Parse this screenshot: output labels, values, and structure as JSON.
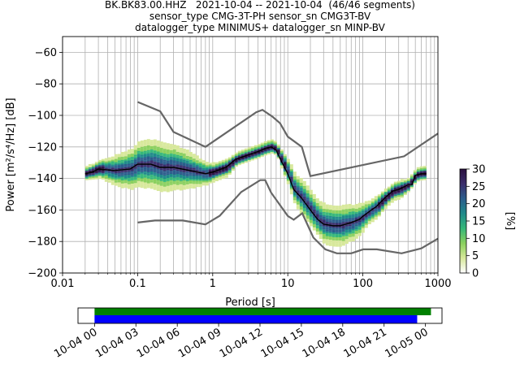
{
  "titles": {
    "line1": "BK.BK83.00.HHZ   2021-10-04 -- 2021-10-04  (46/46 segments)",
    "line2": "sensor_type CMG-3T-PH sensor_sn CMG3T-BV",
    "line3": "datalogger_type MINIMUS+ datalogger_sn MINP-BV"
  },
  "chart_data": [
    {
      "type": "heatmap",
      "title": "BK.BK83.00.HHZ   2021-10-04 -- 2021-10-04  (46/46 segments)",
      "xlabel": "Period [s]",
      "ylabel": "Power [m²/s⁴/Hz] [dB]",
      "xscale": "log",
      "xlim": [
        0.01,
        1000
      ],
      "ylim": [
        -200,
        -50
      ],
      "xticks": [
        0.01,
        0.1,
        1,
        10,
        100,
        1000
      ],
      "xtick_labels": [
        "0.01",
        "0.1",
        "1",
        "10",
        "100",
        "1000"
      ],
      "yticks": [
        -200,
        -180,
        -160,
        -140,
        -120,
        -100,
        -80,
        -60
      ],
      "ytick_labels": [
        "−200",
        "−180",
        "−160",
        "−140",
        "−120",
        "−100",
        "−80",
        "−60"
      ],
      "grid": true,
      "colorbar": {
        "label": "[%]",
        "min": 0,
        "max": 30,
        "ticks": [
          0,
          5,
          10,
          15,
          20,
          25,
          30
        ],
        "tick_labels": [
          "0",
          "5",
          "10",
          "15",
          "20",
          "25",
          "30"
        ],
        "colors": [
          "#ffffff",
          "#d7e89a",
          "#8ad05e",
          "#35b779",
          "#1f8a8a",
          "#2b5d8c",
          "#3a2d6b",
          "#2a0f3f"
        ]
      },
      "mean_curve": {
        "x": [
          0.02,
          0.025,
          0.03,
          0.05,
          0.08,
          0.1,
          0.15,
          0.2,
          0.3,
          0.5,
          0.8,
          1,
          1.5,
          2,
          3,
          4,
          5,
          6,
          7,
          8,
          10,
          12,
          15,
          20,
          25,
          30,
          40,
          50,
          70,
          90,
          100,
          130,
          150,
          200,
          250,
          300,
          400,
          450,
          500,
          600,
          700
        ],
        "y": [
          -137,
          -136,
          -134,
          -135,
          -134,
          -131,
          -131,
          -133,
          -133,
          -135,
          -137,
          -136,
          -133,
          -128,
          -125,
          -123,
          -121,
          -120,
          -122,
          -128,
          -137,
          -147,
          -152,
          -160,
          -166,
          -169,
          -170,
          -170,
          -168,
          -166,
          -164,
          -160,
          -158,
          -152,
          -148,
          -147,
          -144,
          -144,
          -138,
          -137,
          -137
        ]
      },
      "noise_models": [
        {
          "x": [
            0.1,
            0.2,
            0.3,
            0.8,
            3.8,
            4.6,
            6.3,
            7.9,
            10,
            15.4,
            20,
            354,
            1000
          ],
          "y": [
            -91.5,
            -97.4,
            -110.5,
            -120,
            -98,
            -96.5,
            -101,
            -105,
            -113.5,
            -120,
            -138.5,
            -126,
            -111.5
          ]
        },
        {
          "x": [
            0.1,
            0.17,
            0.4,
            0.8,
            1.24,
            2.4,
            4.3,
            5,
            6,
            10,
            12,
            15.6,
            21.9,
            31.6,
            45,
            70,
            101,
            154,
            328,
            600,
            1000
          ],
          "y": [
            -168,
            -166.7,
            -166.7,
            -169.2,
            -163.7,
            -148.6,
            -141.1,
            -141.1,
            -149,
            -163.8,
            -166.2,
            -162.1,
            -177.5,
            -185,
            -187.5,
            -187.5,
            -185,
            -185,
            -187.5,
            -184.4,
            -178.2
          ]
        }
      ],
      "density": {
        "x": [
          0.02,
          0.03,
          0.05,
          0.08,
          0.1,
          0.15,
          0.2,
          0.3,
          0.5,
          0.8,
          1,
          1.5,
          2,
          3,
          4,
          5,
          6,
          7,
          8,
          10,
          12,
          15,
          20,
          25,
          30,
          40,
          50,
          70,
          90,
          100,
          130,
          150,
          200,
          250,
          300,
          400,
          500,
          600,
          700
        ],
        "center": [
          -137,
          -134,
          -135,
          -134,
          -131,
          -131,
          -133,
          -133,
          -135,
          -137,
          -136,
          -133,
          -128,
          -125,
          -123,
          -121,
          -120,
          -122,
          -128,
          -137,
          -147,
          -152,
          -160,
          -166,
          -169,
          -170,
          -170,
          -168,
          -166,
          -164,
          -160,
          -158,
          -152,
          -148,
          -147,
          -144,
          -138,
          -137,
          -137
        ],
        "spread": [
          3,
          4,
          7,
          9,
          10,
          11,
          11,
          10,
          8,
          5,
          4,
          4,
          3,
          3,
          3,
          3,
          3,
          3,
          4,
          6,
          7,
          8,
          8,
          8,
          9,
          9,
          9,
          8,
          7,
          6,
          5,
          5,
          4,
          4,
          4,
          3,
          3,
          3,
          3
        ]
      }
    },
    {
      "type": "bar",
      "title": "",
      "xlabel": "",
      "ylabel": "",
      "xlim": [
        "10-04 00",
        "10-05 00"
      ],
      "xtick_labels": [
        "10-04 00",
        "10-04 03",
        "10-04 06",
        "10-04 09",
        "10-04 12",
        "10-04 15",
        "10-04 18",
        "10-04 21",
        "10-05 00"
      ],
      "xtick_hours": [
        0,
        3,
        6,
        9,
        12,
        15,
        18,
        21,
        24
      ],
      "view_range_hours": [
        -1.2,
        25.2
      ],
      "series": [
        {
          "color": "#008000",
          "start_hour": 0,
          "end_hour": 24.4
        },
        {
          "color": "#0000ff",
          "start_hour": 0,
          "end_hour": 23.4
        }
      ]
    }
  ]
}
